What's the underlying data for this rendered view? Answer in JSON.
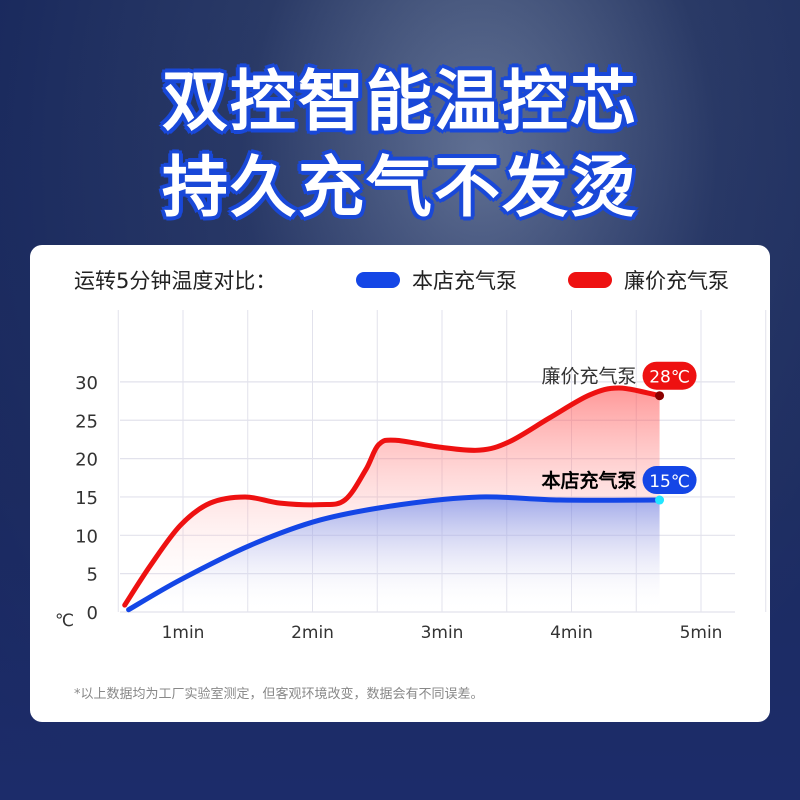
{
  "header": {
    "line1": "双控智能温控芯",
    "line2": "持久充气不发烫"
  },
  "chart_data": {
    "type": "area",
    "title": "运转5分钟温度对比：",
    "ylabel": "℃",
    "yticks": [
      0,
      5,
      10,
      15,
      20,
      25,
      30
    ],
    "xticks": [
      "1min",
      "2min",
      "3min",
      "4min",
      "5min"
    ],
    "xtick_values": [
      1,
      2,
      3,
      4,
      5
    ],
    "xlim": [
      0.5,
      5.5
    ],
    "ylim": [
      0,
      35
    ],
    "grid": true,
    "legend_position": "top-right",
    "series": [
      {
        "name": "本店充气泵",
        "color": "#1446e6",
        "end_label": "15℃",
        "x": [
          0.58,
          0.98,
          1.52,
          2.06,
          2.68,
          3.29,
          3.91,
          4.68
        ],
        "y": [
          0.3,
          4.2,
          8.7,
          12.0,
          14.0,
          15.0,
          14.6,
          14.6
        ]
      },
      {
        "name": "廉价充气泵",
        "color": "#ee1111",
        "end_label": "28℃",
        "x": [
          0.55,
          0.75,
          0.98,
          1.21,
          1.48,
          1.75,
          2.06,
          2.25,
          2.41,
          2.51,
          2.64,
          2.98,
          3.29,
          3.52,
          3.83,
          4.14,
          4.37,
          4.68
        ],
        "y": [
          0.9,
          6.1,
          11.3,
          14.2,
          15.0,
          14.2,
          14.0,
          14.6,
          18.5,
          21.8,
          22.4,
          21.5,
          21.1,
          22.2,
          25.3,
          28.3,
          29.2,
          28.2
        ]
      }
    ],
    "note": "*以上数据均为工厂实验室测定，但客观环境改变，数据会有不同误差。"
  }
}
